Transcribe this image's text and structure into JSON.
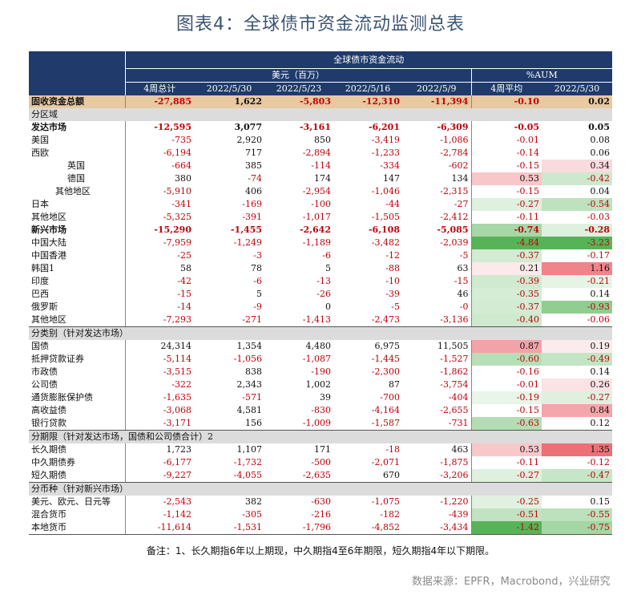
{
  "page": {
    "title": "图表4：全球债市资金流动监测总表"
  },
  "table": {
    "header_top": "全球债市资金流动",
    "group_usd": "美元（百万）",
    "group_aum": "%AUM",
    "columns": [
      "4周总计",
      "2022/5/30",
      "2022/5/23",
      "2022/5/16",
      "2022/5/9",
      "4周平均",
      "2022/5/30"
    ]
  },
  "chart_data": {
    "type": "table",
    "title": "全球债市资金流动",
    "units": {
      "usd_columns": "美元（百万）",
      "aum_columns": "%AUM"
    },
    "columns": [
      "4周总计",
      "2022/5/30",
      "2022/5/23",
      "2022/5/16",
      "2022/5/9",
      "4周平均",
      "2022/5/30"
    ],
    "rows": [
      {
        "label": "固收资金总额",
        "style": "total",
        "values": [
          "-27,885",
          "1,622",
          "-5,803",
          "-12,310",
          "-11,394",
          "-0.10",
          "0.02"
        ]
      },
      {
        "label": "分区域",
        "style": "section"
      },
      {
        "label": "发达市场",
        "style": "bold",
        "values": [
          "-12,595",
          "3,077",
          "-3,161",
          "-6,201",
          "-6,309",
          "-0.05",
          "0.05"
        ]
      },
      {
        "label": "美国",
        "style": "normal",
        "values": [
          "-735",
          "2,920",
          "850",
          "-3,419",
          "-1,086",
          "-0.01",
          "0.08"
        ]
      },
      {
        "label": "西欧",
        "style": "normal",
        "values": [
          "-6,194",
          "717",
          "-2,894",
          "-1,233",
          "-2,784",
          "-0.14",
          "0.06"
        ]
      },
      {
        "label": "英国",
        "style": "ind1",
        "values": [
          "-664",
          "385",
          "-114",
          "-334",
          "-602",
          "-0.15",
          "0.34"
        ]
      },
      {
        "label": "德国",
        "style": "ind1",
        "values": [
          "380",
          "-74",
          "174",
          "147",
          "134",
          "0.53",
          "-0.42"
        ]
      },
      {
        "label": "其他地区",
        "style": "ind2",
        "values": [
          "-5,910",
          "406",
          "-2,954",
          "-1,046",
          "-2,315",
          "-0.15",
          "0.04"
        ]
      },
      {
        "label": "日本",
        "style": "normal",
        "values": [
          "-341",
          "-169",
          "-100",
          "-44",
          "-27",
          "-0.27",
          "-0.54"
        ]
      },
      {
        "label": "其他地区",
        "style": "normal",
        "values": [
          "-5,325",
          "-391",
          "-1,017",
          "-1,505",
          "-2,412",
          "-0.11",
          "-0.03"
        ]
      },
      {
        "label": "新兴市场",
        "style": "bold",
        "values": [
          "-15,290",
          "-1,455",
          "-2,642",
          "-6,108",
          "-5,085",
          "-0.74",
          "-0.28"
        ]
      },
      {
        "label": "中国大陆",
        "style": "normal",
        "values": [
          "-7,959",
          "-1,249",
          "-1,189",
          "-3,482",
          "-2,039",
          "-4.84",
          "-3.23"
        ]
      },
      {
        "label": "中国香港",
        "style": "normal",
        "values": [
          "-25",
          "-3",
          "-6",
          "-12",
          "-5",
          "-0.37",
          "-0.17"
        ]
      },
      {
        "label": "韩国1",
        "style": "normal",
        "values": [
          "58",
          "78",
          "5",
          "-88",
          "63",
          "0.21",
          "1.16"
        ]
      },
      {
        "label": "印度",
        "style": "normal",
        "values": [
          "-42",
          "-6",
          "-13",
          "-10",
          "-15",
          "-0.39",
          "-0.21"
        ]
      },
      {
        "label": "巴西",
        "style": "normal",
        "values": [
          "-15",
          "5",
          "-26",
          "-39",
          "46",
          "-0.35",
          "0.14"
        ]
      },
      {
        "label": "俄罗斯",
        "style": "normal",
        "values": [
          "-14",
          "-9",
          "0",
          "-5",
          "-0",
          "-0.37",
          "-0.93"
        ]
      },
      {
        "label": "其他地区",
        "style": "groupend",
        "values": [
          "-7,293",
          "-271",
          "-1,413",
          "-2,473",
          "-3,136",
          "-0.40",
          "-0.06"
        ]
      },
      {
        "label": "分类别（针对发达市场）",
        "style": "section"
      },
      {
        "label": "国债",
        "style": "normal",
        "values": [
          "24,314",
          "1,354",
          "4,480",
          "6,975",
          "11,505",
          "0.87",
          "0.19"
        ]
      },
      {
        "label": "抵押贷款证券",
        "style": "normal",
        "values": [
          "-5,114",
          "-1,056",
          "-1,087",
          "-1,445",
          "-1,527",
          "-0.60",
          "-0.49"
        ]
      },
      {
        "label": "市政债",
        "style": "normal",
        "values": [
          "-3,515",
          "838",
          "-190",
          "-2,300",
          "-1,862",
          "-0.16",
          "0.14"
        ]
      },
      {
        "label": "公司债",
        "style": "normal",
        "values": [
          "-322",
          "2,343",
          "1,002",
          "87",
          "-3,754",
          "-0.01",
          "0.26"
        ]
      },
      {
        "label": "通货膨胀保护债",
        "style": "normal",
        "values": [
          "-1,635",
          "-571",
          "39",
          "-700",
          "-404",
          "-0.19",
          "-0.27"
        ]
      },
      {
        "label": "高收益债",
        "style": "normal",
        "values": [
          "-3,068",
          "4,581",
          "-830",
          "-4,164",
          "-2,655",
          "-0.15",
          "0.84"
        ]
      },
      {
        "label": "银行贷款",
        "style": "groupend",
        "values": [
          "-3,171",
          "156",
          "-1,009",
          "-1,587",
          "-731",
          "-0.63",
          "0.12"
        ]
      },
      {
        "label": "分期限（针对发达市场，国债和公司债合计）2",
        "style": "section"
      },
      {
        "label": "长久期债",
        "style": "normal",
        "values": [
          "1,723",
          "1,107",
          "171",
          "-18",
          "463",
          "0.53",
          "1.35"
        ]
      },
      {
        "label": "中久期债券",
        "style": "normal",
        "values": [
          "-6,177",
          "-1,732",
          "-500",
          "-2,071",
          "-1,875",
          "-0.11",
          "-0.12"
        ]
      },
      {
        "label": "短久期债",
        "style": "groupend",
        "values": [
          "-9,227",
          "-4,055",
          "-2,635",
          "670",
          "-3,206",
          "-0.27",
          "-0.47"
        ]
      },
      {
        "label": "分币种（针对新兴市场）",
        "style": "section"
      },
      {
        "label": "美元、欧元、日元等",
        "style": "normal",
        "values": [
          "-2,543",
          "382",
          "-630",
          "-1,075",
          "-1,220",
          "-0.25",
          "0.15"
        ]
      },
      {
        "label": "混合货币",
        "style": "normal",
        "values": [
          "-1,142",
          "-305",
          "-216",
          "-182",
          "-439",
          "-0.51",
          "-0.55"
        ]
      },
      {
        "label": "本地货币",
        "style": "groupend",
        "values": [
          "-11,614",
          "-1,531",
          "-1,796",
          "-4,852",
          "-3,434",
          "-1.42",
          "-0.75"
        ]
      }
    ]
  },
  "heatmap": {
    "positive_color": "#e8505a",
    "negative_color": "#3aa63a",
    "max_abs": 1.4
  },
  "footer": {
    "note": "备注：1、长久期指6年以上期现，中久期指4至6年期限，短久期指4年以下期限。",
    "source": "数据来源：EPFR，Macrobond，兴业研究"
  }
}
